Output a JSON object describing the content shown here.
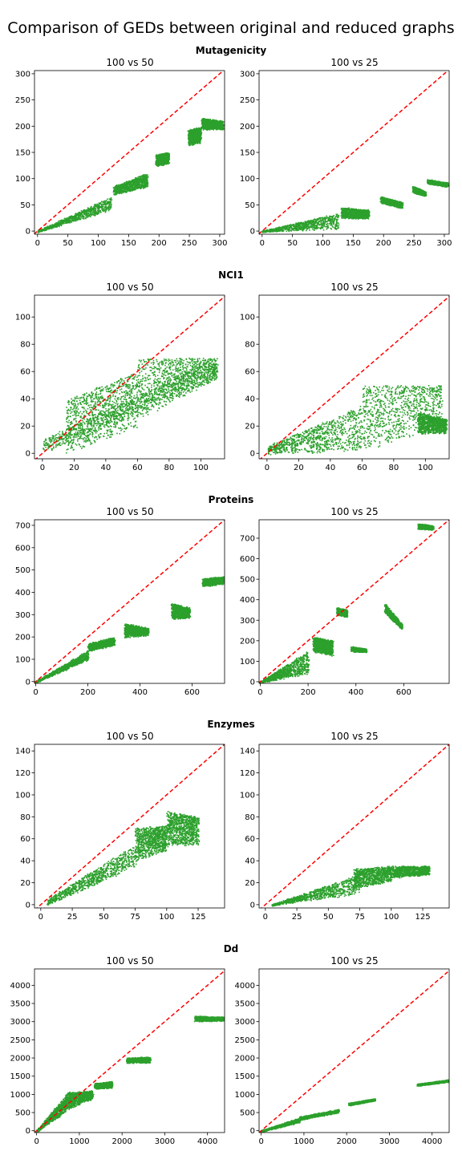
{
  "title": "Comparison of GEDs between original and reduced graphs",
  "colors": {
    "points": "#2ca02c",
    "diagonal": "#ff0000",
    "axes": "#000000"
  },
  "chart_data": [
    {
      "dataset": "Mutagenicity",
      "panels": [
        {
          "type": "scatter",
          "title": "100 vs 50",
          "xlim": [
            -5,
            308
          ],
          "ylim": [
            -6,
            306
          ],
          "xticks": [
            0,
            50,
            100,
            150,
            200,
            250,
            300
          ],
          "yticks": [
            0,
            50,
            100,
            150,
            200,
            250,
            300
          ],
          "diagonal": true,
          "clusters": [
            {
              "x": [
                0,
                120
              ],
              "y": [
                0,
                65
              ],
              "ylow": [
                0,
                40
              ]
            },
            {
              "x": [
                125,
                180
              ],
              "y": [
                85,
                110
              ],
              "ylow": [
                70,
                85
              ]
            },
            {
              "x": [
                195,
                215
              ],
              "y": [
                145,
                150
              ],
              "ylow": [
                125,
                130
              ]
            },
            {
              "x": [
                248,
                268
              ],
              "y": [
                192,
                198
              ],
              "ylow": [
                165,
                170
              ]
            },
            {
              "x": [
                270,
                305
              ],
              "y": [
                215,
                210
              ],
              "ylow": [
                195,
                195
              ]
            }
          ]
        },
        {
          "type": "scatter",
          "title": "100 vs 25",
          "xlim": [
            -5,
            308
          ],
          "ylim": [
            -6,
            306
          ],
          "xticks": [
            0,
            50,
            100,
            150,
            200,
            250,
            300
          ],
          "yticks": [
            0,
            50,
            100,
            150,
            200,
            250,
            300
          ],
          "diagonal": true,
          "clusters": [
            {
              "x": [
                0,
                125
              ],
              "y": [
                0,
                35
              ],
              "ylow": [
                0,
                5
              ]
            },
            {
              "x": [
                130,
                175
              ],
              "y": [
                45,
                40
              ],
              "ylow": [
                25,
                25
              ]
            },
            {
              "x": [
                195,
                230
              ],
              "y": [
                65,
                55
              ],
              "ylow": [
                55,
                45
              ]
            },
            {
              "x": [
                248,
                268
              ],
              "y": [
                85,
                75
              ],
              "ylow": [
                75,
                68
              ]
            },
            {
              "x": [
                272,
                305
              ],
              "y": [
                98,
                92
              ],
              "ylow": [
                92,
                86
              ]
            }
          ]
        }
      ]
    },
    {
      "dataset": "NCI1",
      "panels": [
        {
          "type": "scatter",
          "title": "100 vs 50",
          "xlim": [
            -5,
            115
          ],
          "ylim": [
            -4,
            116
          ],
          "xticks": [
            0,
            20,
            40,
            60,
            80,
            100
          ],
          "yticks": [
            0,
            20,
            40,
            60,
            80,
            100
          ],
          "diagonal": true,
          "clusters": [
            {
              "x": [
                0,
                110
              ],
              "y": [
                10,
                70
              ],
              "ylow": [
                0,
                55
              ]
            },
            {
              "x": [
                15,
                60
              ],
              "y": [
                40,
                60
              ],
              "ylow": [
                0,
                20
              ]
            },
            {
              "x": [
                60,
                110
              ],
              "y": [
                70,
                70
              ],
              "ylow": [
                25,
                55
              ]
            }
          ]
        },
        {
          "type": "scatter",
          "title": "100 vs 25",
          "xlim": [
            -5,
            115
          ],
          "ylim": [
            -4,
            116
          ],
          "xticks": [
            0,
            20,
            40,
            60,
            80,
            100
          ],
          "yticks": [
            0,
            20,
            40,
            60,
            80,
            100
          ],
          "diagonal": true,
          "clusters": [
            {
              "x": [
                0,
                60
              ],
              "y": [
                5,
                35
              ],
              "ylow": [
                0,
                2
              ]
            },
            {
              "x": [
                60,
                110
              ],
              "y": [
                50,
                50
              ],
              "ylow": [
                2,
                20
              ]
            },
            {
              "x": [
                95,
                113
              ],
              "y": [
                30,
                25
              ],
              "ylow": [
                15,
                15
              ]
            }
          ]
        }
      ]
    },
    {
      "dataset": "Proteins",
      "panels": [
        {
          "type": "scatter",
          "title": "100 vs 50",
          "xlim": [
            -5,
            725
          ],
          "ylim": [
            -8,
            725
          ],
          "xticks": [
            0,
            200,
            400,
            600
          ],
          "yticks": [
            0,
            100,
            200,
            300,
            400,
            500,
            600,
            700
          ],
          "diagonal": true,
          "clusters": [
            {
              "x": [
                0,
                200
              ],
              "y": [
                0,
                140
              ],
              "ylow": [
                0,
                100
              ]
            },
            {
              "x": [
                200,
                300
              ],
              "y": [
                170,
                200
              ],
              "ylow": [
                140,
                165
              ]
            },
            {
              "x": [
                340,
                430
              ],
              "y": [
                260,
                240
              ],
              "ylow": [
                200,
                210
              ]
            },
            {
              "x": [
                520,
                590
              ],
              "y": [
                350,
                330
              ],
              "ylow": [
                280,
                290
              ]
            },
            {
              "x": [
                640,
                720
              ],
              "y": [
                460,
                470
              ],
              "ylow": [
                430,
                440
              ]
            }
          ]
        },
        {
          "type": "scatter",
          "title": "100 vs 25",
          "xlim": [
            -5,
            790
          ],
          "ylim": [
            -8,
            790
          ],
          "xticks": [
            0,
            200,
            400,
            600
          ],
          "yticks": [
            0,
            100,
            200,
            300,
            400,
            500,
            600,
            700
          ],
          "diagonal": true,
          "clusters": [
            {
              "x": [
                0,
                200
              ],
              "y": [
                0,
                150
              ],
              "ylow": [
                0,
                40
              ]
            },
            {
              "x": [
                220,
                300
              ],
              "y": [
                220,
                200
              ],
              "ylow": [
                150,
                130
              ]
            },
            {
              "x": [
                320,
                360
              ],
              "y": [
                360,
                350
              ],
              "ylow": [
                330,
                320
              ]
            },
            {
              "x": [
                380,
                440
              ],
              "y": [
                170,
                160
              ],
              "ylow": [
                150,
                150
              ]
            },
            {
              "x": [
                520,
                590
              ],
              "y": [
                380,
                280
              ],
              "ylow": [
                340,
                260
              ]
            },
            {
              "x": [
                660,
                720
              ],
              "y": [
                770,
                760
              ],
              "ylow": [
                750,
                745
              ]
            }
          ]
        }
      ]
    },
    {
      "dataset": "Enzymes",
      "panels": [
        {
          "type": "scatter",
          "title": "100 vs 50",
          "xlim": [
            -5,
            146
          ],
          "ylim": [
            -3,
            146
          ],
          "xticks": [
            0,
            25,
            50,
            75,
            100,
            125
          ],
          "yticks": [
            0,
            20,
            40,
            60,
            80,
            100,
            120,
            140
          ],
          "diagonal": true,
          "clusters": [
            {
              "x": [
                5,
                75
              ],
              "y": [
                5,
                55
              ],
              "ylow": [
                0,
                35
              ]
            },
            {
              "x": [
                75,
                100
              ],
              "y": [
                70,
                72
              ],
              "ylow": [
                40,
                50
              ]
            },
            {
              "x": [
                100,
                125
              ],
              "y": [
                85,
                80
              ],
              "ylow": [
                55,
                55
              ]
            }
          ]
        },
        {
          "type": "scatter",
          "title": "100 vs 25",
          "xlim": [
            -5,
            146
          ],
          "ylim": [
            -3,
            146
          ],
          "xticks": [
            0,
            25,
            50,
            75,
            100,
            125
          ],
          "yticks": [
            0,
            20,
            40,
            60,
            80,
            100,
            120,
            140
          ],
          "diagonal": true,
          "clusters": [
            {
              "x": [
                5,
                75
              ],
              "y": [
                0,
                28
              ],
              "ylow": [
                0,
                10
              ]
            },
            {
              "x": [
                70,
                100
              ],
              "y": [
                33,
                35
              ],
              "ylow": [
                15,
                22
              ]
            },
            {
              "x": [
                100,
                130
              ],
              "y": [
                35,
                35
              ],
              "ylow": [
                25,
                28
              ]
            }
          ]
        }
      ]
    },
    {
      "dataset": "Dd",
      "panels": [
        {
          "type": "scatter",
          "title": "100 vs 50",
          "xlim": [
            -50,
            4400
          ],
          "ylim": [
            -50,
            4450
          ],
          "xticks": [
            0,
            1000,
            2000,
            3000,
            4000
          ],
          "yticks": [
            0,
            500,
            1000,
            1500,
            2000,
            2500,
            3000,
            3500,
            4000
          ],
          "diagonal": true,
          "clusters": [
            {
              "x": [
                0,
                700
              ],
              "y": [
                0,
                1000
              ],
              "ylow": [
                0,
                550
              ]
            },
            {
              "x": [
                700,
                1300
              ],
              "y": [
                1050,
                1100
              ],
              "ylow": [
                600,
                900
              ]
            },
            {
              "x": [
                1350,
                1750
              ],
              "y": [
                1300,
                1350
              ],
              "ylow": [
                1180,
                1200
              ]
            },
            {
              "x": [
                2100,
                2650
              ],
              "y": [
                2000,
                2020
              ],
              "ylow": [
                1880,
                1900
              ]
            },
            {
              "x": [
                3700,
                4400
              ],
              "y": [
                3150,
                3120
              ],
              "ylow": [
                3020,
                3050
              ]
            }
          ]
        },
        {
          "type": "scatter",
          "title": "100 vs 25",
          "xlim": [
            -50,
            4400
          ],
          "ylim": [
            -50,
            4450
          ],
          "xticks": [
            0,
            1000,
            2000,
            3000,
            4000
          ],
          "yticks": [
            0,
            500,
            1000,
            1500,
            2000,
            2500,
            3000,
            3500,
            4000
          ],
          "diagonal": true,
          "clusters": [
            {
              "x": [
                0,
                900
              ],
              "y": [
                0,
                350
              ],
              "ylow": [
                0,
                250
              ]
            },
            {
              "x": [
                900,
                1800
              ],
              "y": [
                380,
                580
              ],
              "ylow": [
                320,
                520
              ]
            },
            {
              "x": [
                2050,
                2650
              ],
              "y": [
                750,
                880
              ],
              "ylow": [
                720,
                850
              ]
            },
            {
              "x": [
                3650,
                4400
              ],
              "y": [
                1280,
                1400
              ],
              "ylow": [
                1260,
                1370
              ]
            }
          ]
        }
      ]
    }
  ]
}
